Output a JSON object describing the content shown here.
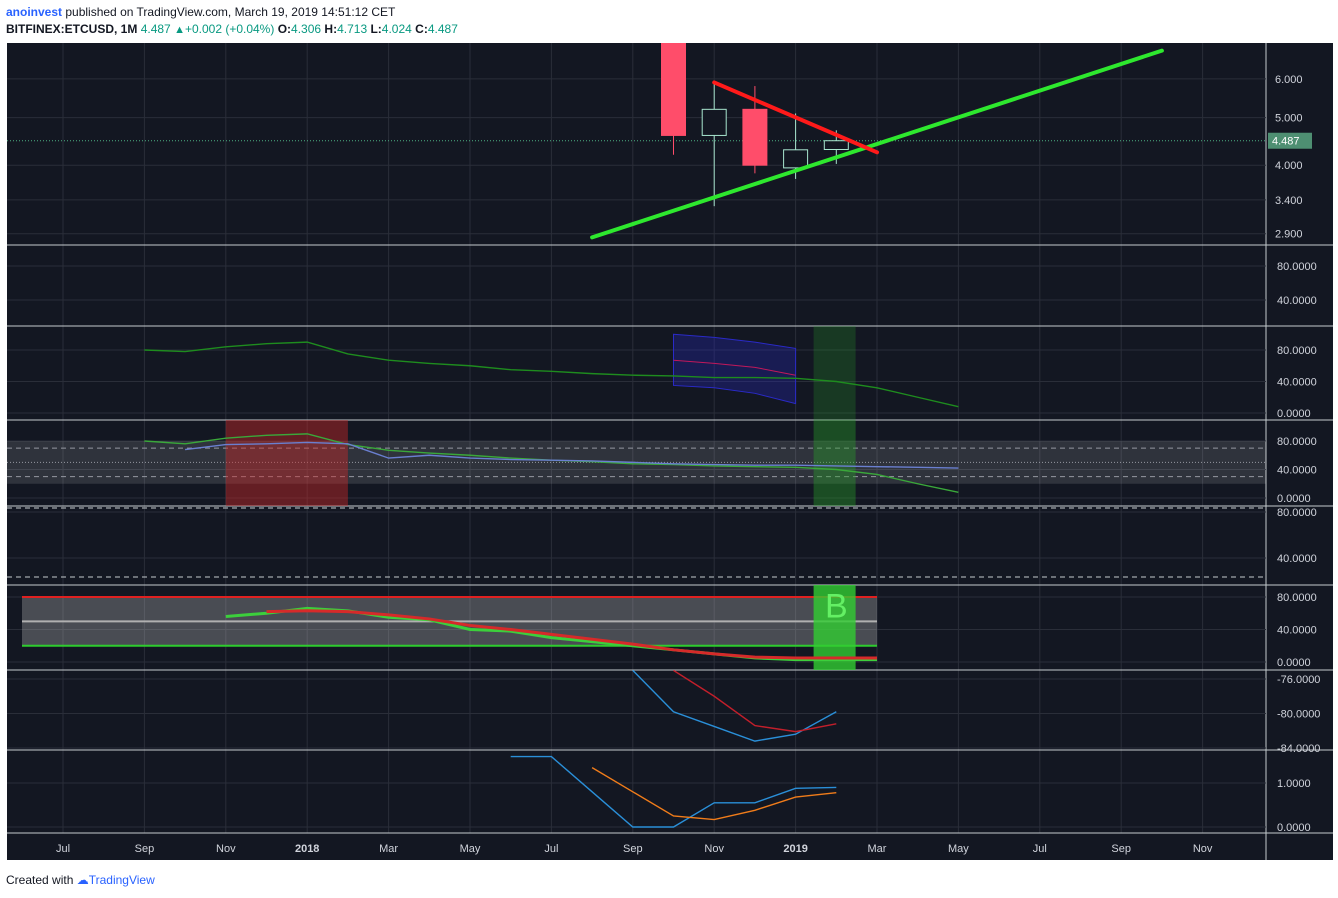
{
  "header": {
    "author": "anoinvest",
    "published_text": "published on TradingView.com, March 19, 2019 14:51:12 CET",
    "symbol": "BITFINEX:ETCUSD, 1M",
    "last": "4.487",
    "change": "+0.002 (+0.04%)",
    "open_label": "O:",
    "open": "4.306",
    "high_label": "H:",
    "high": "4.713",
    "low_label": "L:",
    "low": "4.024",
    "close_label": "C:",
    "close": "4.487"
  },
  "footer": {
    "created_with": "Created with",
    "brand": "TradingView"
  },
  "colors": {
    "background": "#131722",
    "grid": "#2a2e39",
    "bull": "#a8e6cf",
    "bear": "#ff4d6a",
    "trend_up": "#2ee82e",
    "trend_down": "#ff1a1a"
  },
  "chart_data": {
    "type": "candlestick",
    "time_axis": [
      "Jul",
      "Sep",
      "Nov",
      "2018",
      "Mar",
      "May",
      "Jul",
      "Sep",
      "Nov",
      "2019",
      "Mar",
      "May",
      "Jul",
      "Sep",
      "Nov"
    ],
    "price_ticks": [
      "6.000",
      "5.000",
      "4.000",
      "3.400",
      "2.900"
    ],
    "price_scale": "log",
    "price_range": [
      2.75,
      7.1
    ],
    "last_price_label": "4.487",
    "candles": [
      {
        "date": "2018-10",
        "open": 7.5,
        "high": 7.6,
        "low": 4.2,
        "close": 4.6
      },
      {
        "date": "2018-11",
        "open": 4.6,
        "high": 5.9,
        "low": 3.3,
        "close": 5.2
      },
      {
        "date": "2018-12",
        "open": 5.2,
        "high": 5.8,
        "low": 3.85,
        "close": 4.0
      },
      {
        "date": "2019-01",
        "open": 3.95,
        "high": 5.1,
        "low": 3.75,
        "close": 4.3
      },
      {
        "date": "2019-02",
        "open": 4.306,
        "high": 4.713,
        "low": 4.024,
        "close": 4.487
      }
    ],
    "trendlines": [
      {
        "name": "support",
        "color": "#2ee82e",
        "from": [
          "2018-08",
          2.85
        ],
        "to": [
          "2019-10",
          6.85
        ]
      },
      {
        "name": "resistance",
        "color": "#ff1a1a",
        "from": [
          "2018-11",
          5.9
        ],
        "to": [
          "2019-03",
          4.25
        ]
      }
    ],
    "panes": [
      {
        "ticks": [
          "80.0000",
          "40.0000"
        ],
        "range": [
          0,
          100
        ]
      },
      {
        "ticks": [
          "80.0000",
          "40.0000",
          "0.0000"
        ],
        "range": [
          0,
          100
        ],
        "series": [
          {
            "color": "#1e8c1e",
            "values": [
              80,
              78,
              84,
              88,
              90,
              75,
              67,
              63,
              60,
              55,
              53,
              50,
              48,
              47,
              45,
              45,
              44,
              40,
              32,
              20,
              8
            ],
            "from": "2017-09"
          }
        ],
        "band": {
          "upper": [
            100,
            96,
            90,
            82
          ],
          "mid": [
            67,
            63,
            58,
            48
          ],
          "lower": [
            35,
            32,
            25,
            12
          ],
          "from": "2018-10"
        }
      },
      {
        "ticks": [
          "80.0000",
          "40.0000",
          "0.0000"
        ],
        "range": [
          0,
          100
        ],
        "series": [
          {
            "color": "#3aa83a",
            "values": [
              80,
              76,
              84,
              88,
              90,
              75,
              67,
              63,
              60,
              56,
              53,
              51,
              48,
              47,
              45,
              44,
              43,
              40,
              33,
              20,
              8
            ],
            "from": "2017-09"
          },
          {
            "color": "#6a7fd0",
            "values": [
              68,
              75,
              76,
              78,
              76,
              56,
              60,
              56,
              54,
              53,
              52,
              50,
              48,
              47,
              46,
              46,
              45,
              44,
              43,
              42
            ],
            "from": "2017-10"
          }
        ]
      },
      {
        "ticks": [
          "80.0000",
          "40.0000"
        ],
        "range": [
          0,
          100
        ]
      },
      {
        "ticks": [
          "80.0000",
          "40.0000",
          "0.0000"
        ],
        "range": [
          0,
          100
        ],
        "signal_label": "B",
        "series": [
          {
            "color": "#3ccf3c",
            "values": [
              56,
              60,
              66,
              63,
              55,
              52,
              40,
              38,
              30,
              25,
              20,
              15,
              10,
              5,
              3,
              3,
              3
            ],
            "from": "2017-11"
          },
          {
            "color": "#d62a2a",
            "values": [
              62,
              63,
              62,
              58,
              53,
              45,
              40,
              34,
              28,
              22,
              15,
              10,
              6,
              5,
              5,
              5
            ],
            "from": "2017-12"
          }
        ]
      },
      {
        "ticks": [
          "-76.0000",
          "-80.0000",
          "-84.0000"
        ],
        "range": [
          -84.4,
          -75.4
        ],
        "series": [
          {
            "color": "#2a8fd8",
            "values": [
              -75.0,
              -79.8,
              -81.5,
              -83.2,
              -82.4,
              -79.8
            ],
            "from": "2018-09"
          },
          {
            "color": "#c21f2b",
            "values": [
              -75.0,
              -78.0,
              -81.4,
              -82.1,
              -81.2
            ],
            "from": "2018-10"
          }
        ]
      },
      {
        "ticks": [
          "1.0000",
          "0.0000"
        ],
        "range": [
          -0.1,
          1.8
        ],
        "series": [
          {
            "color": "#2a8fd8",
            "values": [
              1.6,
              1.6,
              0.8,
              0.0,
              0.0,
              0.55,
              0.55,
              0.88,
              0.9
            ],
            "from": "2018-06"
          },
          {
            "color": "#f07c1a",
            "values": [
              1.35,
              0.8,
              0.25,
              0.17,
              0.38,
              0.68,
              0.78
            ],
            "from": "2018-08"
          }
        ]
      }
    ]
  }
}
